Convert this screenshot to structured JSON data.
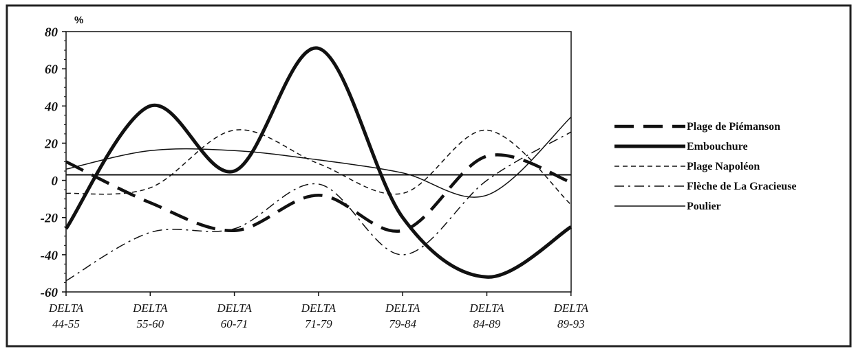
{
  "chart_data": {
    "type": "line",
    "ylabel": "%",
    "ylim": [
      -60,
      80
    ],
    "yticks": [
      80,
      60,
      40,
      20,
      0,
      -20,
      -40,
      -60
    ],
    "categories": [
      [
        "DELTA",
        "44-55"
      ],
      [
        "DELTA",
        "55-60"
      ],
      [
        "DELTA",
        "60-71"
      ],
      [
        "DELTA",
        "71-79"
      ],
      [
        "DELTA",
        "79-84"
      ],
      [
        "DELTA",
        "84-89"
      ],
      [
        "DELTA",
        "89-93"
      ]
    ],
    "reference_line": 3,
    "legend_position": "right",
    "series": [
      {
        "name": "Plage de Piémanson",
        "style": "long-dash",
        "width": 4.5,
        "values": [
          10,
          -12,
          -27,
          -8,
          -27,
          13,
          -1
        ]
      },
      {
        "name": "Embouchure",
        "style": "solid",
        "width": 5,
        "values": [
          -26,
          40,
          5,
          71,
          -20,
          -52,
          -25
        ]
      },
      {
        "name": "Plage Napoléon",
        "style": "short-dash",
        "width": 1.5,
        "values": [
          -7,
          -4,
          27,
          9,
          -7,
          27,
          -13
        ]
      },
      {
        "name": "Flèche de La Gracieuse",
        "style": "dash-dot",
        "width": 1.5,
        "values": [
          -54,
          -28,
          -26,
          -2,
          -40,
          0,
          26
        ]
      },
      {
        "name": "Poulier",
        "style": "solid",
        "width": 1.5,
        "values": [
          6,
          16,
          16,
          11,
          4,
          -8,
          34
        ]
      }
    ]
  }
}
